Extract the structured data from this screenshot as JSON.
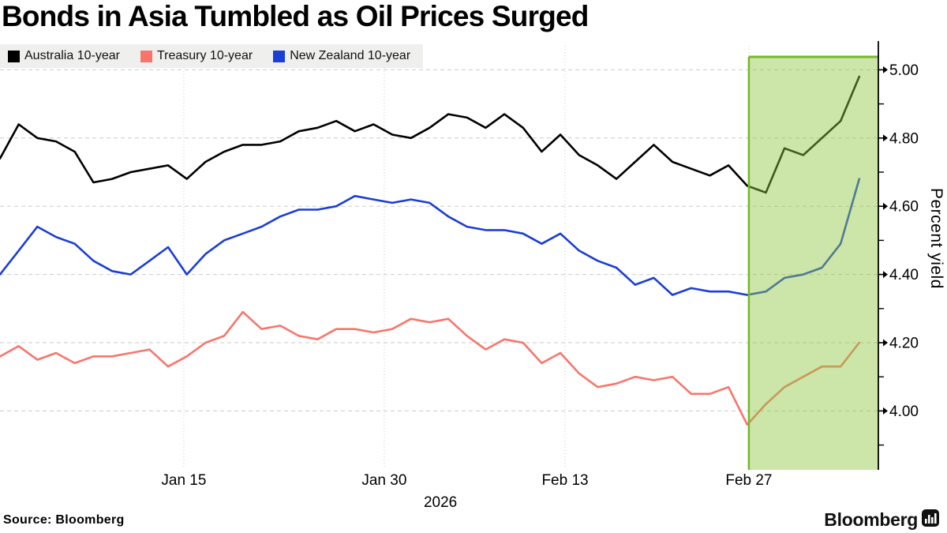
{
  "title": "Bonds in Asia Tumbled as Oil Prices Surged",
  "legend": {
    "items": [
      {
        "label": "Australia 10-year",
        "color": "#000000"
      },
      {
        "label": "Treasury 10-year",
        "color": "#f8756c"
      },
      {
        "label": "New Zealand 10-year",
        "color": "#1a3ed6"
      }
    ]
  },
  "footer": {
    "source_label": "Source: Bloomberg",
    "brand": "Bloomberg"
  },
  "chart_data": {
    "type": "line",
    "title": "Bonds in Asia Tumbled as Oil Prices Surged",
    "xlabel": "",
    "ylabel": "Percent yield",
    "ylim": [
      3.83,
      5.08
    ],
    "grid": true,
    "legend_position": "top-left",
    "y_ticks_major": [
      {
        "value": 4.0,
        "label": "4.00"
      },
      {
        "value": 4.2,
        "label": "4.20"
      },
      {
        "value": 4.4,
        "label": "4.40"
      },
      {
        "value": 4.6,
        "label": "4.60"
      },
      {
        "value": 4.8,
        "label": "4.80"
      },
      {
        "value": 5.0,
        "label": "5.00"
      }
    ],
    "y_ticks_minor": [
      3.9,
      4.1,
      4.3,
      4.5,
      4.7,
      4.9
    ],
    "x_ticks": [
      {
        "label": "Jan 15",
        "i": 9.84
      },
      {
        "label": "Jan 30",
        "i": 20.57
      },
      {
        "label": "Feb 13",
        "i": 30.25
      },
      {
        "label": "Feb 27",
        "i": 40.09
      }
    ],
    "year_label": {
      "label": "2026",
      "i": 23.58
    },
    "highlight_region": {
      "start_i": 40.09,
      "extends_to_right_axis": true,
      "fill": "#8dc63f",
      "fill_opacity": 0.45,
      "border_color": "#76b72b"
    },
    "series": [
      {
        "name": "Australia 10-year",
        "color": "#000000",
        "values": [
          4.74,
          4.84,
          4.8,
          4.79,
          4.76,
          4.67,
          4.68,
          4.7,
          4.71,
          4.72,
          4.68,
          4.73,
          4.76,
          4.78,
          4.78,
          4.79,
          4.82,
          4.83,
          4.85,
          4.82,
          4.84,
          4.81,
          4.8,
          4.83,
          4.87,
          4.86,
          4.83,
          4.87,
          4.83,
          4.76,
          4.81,
          4.75,
          4.72,
          4.68,
          4.73,
          4.78,
          4.73,
          4.71,
          4.69,
          4.72,
          4.66,
          4.64,
          4.77,
          4.75,
          4.8,
          4.85,
          4.98
        ]
      },
      {
        "name": "Treasury 10-year",
        "color": "#f8756c",
        "values": [
          4.16,
          4.19,
          4.15,
          4.17,
          4.14,
          4.16,
          4.16,
          4.17,
          4.18,
          4.13,
          4.16,
          4.2,
          4.22,
          4.29,
          4.24,
          4.25,
          4.22,
          4.21,
          4.24,
          4.24,
          4.23,
          4.24,
          4.27,
          4.26,
          4.27,
          4.22,
          4.18,
          4.21,
          4.2,
          4.14,
          4.17,
          4.11,
          4.07,
          4.08,
          4.1,
          4.09,
          4.1,
          4.05,
          4.05,
          4.07,
          3.96,
          4.02,
          4.07,
          4.1,
          4.13,
          4.13,
          4.2
        ]
      },
      {
        "name": "New Zealand 10-year",
        "color": "#1a3ed6",
        "values": [
          4.4,
          4.47,
          4.54,
          4.51,
          4.49,
          4.44,
          4.41,
          4.4,
          4.44,
          4.48,
          4.4,
          4.46,
          4.5,
          4.52,
          4.54,
          4.57,
          4.59,
          4.59,
          4.6,
          4.63,
          4.62,
          4.61,
          4.62,
          4.61,
          4.57,
          4.54,
          4.53,
          4.53,
          4.52,
          4.49,
          4.52,
          4.47,
          4.44,
          4.42,
          4.37,
          4.39,
          4.34,
          4.36,
          4.35,
          4.35,
          4.34,
          4.35,
          4.39,
          4.4,
          4.42,
          4.49,
          4.68
        ]
      }
    ]
  }
}
